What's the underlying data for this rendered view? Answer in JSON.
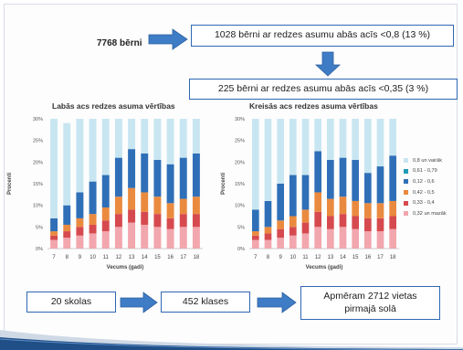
{
  "flow": {
    "total_label": "7768 bērni",
    "box1": "1028 bērni ar redzes asumu abās acīs <0,8 (13 %)",
    "box2": "225 bērni ar redzes asumu abās acīs <0,35 (3 %)",
    "schools": "20 skolas",
    "classes": "452 klases",
    "seats_line1": "Apmēram 2712 vietas",
    "seats_line2": "pirmajā solā"
  },
  "colors": {
    "accent": "#2f67b3",
    "arrow": "#3f7cc6",
    "seg": [
      "#f2a6ad",
      "#d64a4f",
      "#ea8a3f",
      "#2f6fb7",
      "#1f9bb5",
      "#c8e6f1"
    ]
  },
  "chart_data": [
    {
      "type": "bar",
      "stacked": true,
      "title": "Labās acs redzes asuma vērtības",
      "xlabel": "Vecums (gadi)",
      "ylabel": "Procenti",
      "ylim": [
        0,
        30
      ],
      "yticks": [
        "0%",
        "5%",
        "10%",
        "15%",
        "20%",
        "25%",
        "30%"
      ],
      "grid": false,
      "categories": [
        "7",
        "8",
        "9",
        "10",
        "11",
        "12",
        "13",
        "14",
        "15",
        "16",
        "17",
        "18"
      ],
      "series": [
        {
          "values": [
            2,
            2.5,
            3,
            3.5,
            4,
            5,
            6,
            5.5,
            5,
            4.5,
            5,
            5
          ]
        },
        {
          "values": [
            1,
            1.5,
            2,
            2,
            2.5,
            3,
            3,
            3,
            3,
            2.5,
            3,
            3
          ]
        },
        {
          "values": [
            1,
            1.5,
            2,
            2.5,
            3,
            4,
            5,
            4.5,
            4,
            3.5,
            3.5,
            4
          ]
        },
        {
          "values": [
            3,
            4.5,
            6,
            7.5,
            7.5,
            9,
            9,
            9,
            8.5,
            9,
            9.5,
            10
          ]
        },
        {
          "values": [
            0,
            0,
            0,
            0,
            0,
            0,
            0,
            0,
            0,
            0,
            0,
            0
          ]
        },
        {
          "values": [
            23,
            19,
            17,
            14.5,
            13,
            9,
            7,
            8,
            9.5,
            10.5,
            9,
            8
          ]
        }
      ]
    },
    {
      "type": "bar",
      "stacked": true,
      "title": "Kreisās acs redzes asuma vērtības",
      "xlabel": "Vecums (gadi)",
      "ylabel": "Procenti",
      "ylim": [
        0,
        30
      ],
      "yticks": [
        "0%",
        "5%",
        "10%",
        "15%",
        "20%",
        "25%",
        "30%"
      ],
      "grid": false,
      "legend": "right",
      "categories": [
        "7",
        "8",
        "9",
        "10",
        "11",
        "12",
        "13",
        "14",
        "15",
        "16",
        "17",
        "18"
      ],
      "legend_entries": [
        "0,8 un vairāk",
        "0,61 - 0,79",
        "0,12 - 0,6",
        "0,42 - 0,5",
        "0,33 - 0,4",
        "0,32 un mazāk"
      ],
      "series": [
        {
          "values": [
            2,
            2,
            2.5,
            3,
            3.5,
            5,
            4.5,
            5,
            4.5,
            4,
            4,
            4.5
          ]
        },
        {
          "values": [
            1,
            1.5,
            2,
            2,
            2.5,
            3.5,
            3,
            3,
            3,
            3,
            3,
            3
          ]
        },
        {
          "values": [
            1,
            1.5,
            2,
            2.5,
            3,
            4.5,
            4,
            4,
            3.5,
            3.5,
            3.5,
            3.5
          ]
        },
        {
          "values": [
            5,
            6,
            8.5,
            9.5,
            8,
            9.5,
            9,
            9,
            9.5,
            7,
            8.5,
            10.5
          ]
        },
        {
          "values": [
            0,
            0,
            0,
            0,
            0,
            0,
            0,
            0,
            0,
            0,
            0,
            0
          ]
        },
        {
          "values": [
            21,
            19,
            15,
            13,
            13,
            7.5,
            9.5,
            9,
            9.5,
            12.5,
            11,
            8.5
          ]
        }
      ]
    }
  ]
}
